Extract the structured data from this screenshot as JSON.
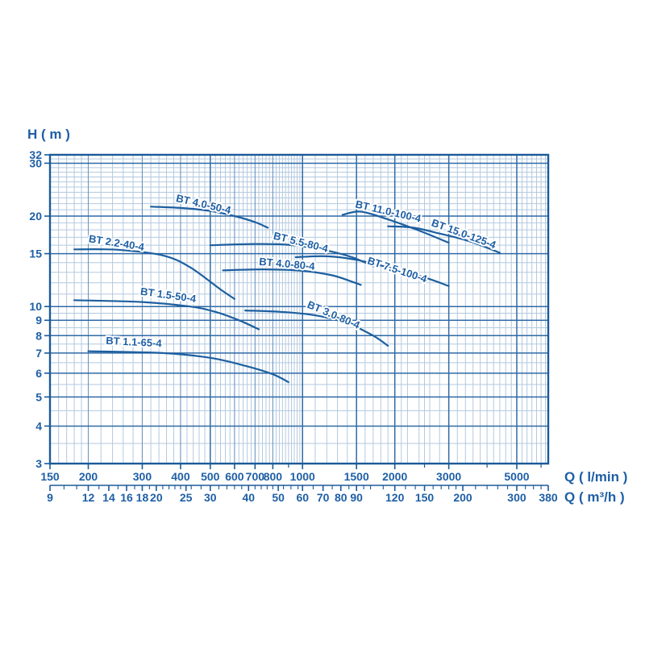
{
  "page": {
    "background": "#ffffff"
  },
  "colors": {
    "text": "#1e5fa5",
    "curve": "#1d5f9f",
    "border": "#1b5a99",
    "grid_major": "#2f6aa6",
    "grid_mid": "#6d94bf",
    "grid_minor": "#b3c9df"
  },
  "chart_data": {
    "type": "line",
    "title": "",
    "x_axis": {
      "label_lmin": "Q ( l/min )",
      "label_m3h": "Q ( m³/h )",
      "scale": "log",
      "q_min_lmin": 150,
      "q_max_lmin": 6333,
      "lmin_ticks_labeled": [
        150,
        200,
        300,
        400,
        500,
        600,
        700,
        800,
        1000,
        1500,
        2000,
        3000,
        5000
      ],
      "lmin_ticks_minor_stub": [
        900,
        2500,
        4000,
        6000
      ],
      "m3h_ticks_labeled": [
        9,
        12,
        14,
        16,
        18,
        20,
        25,
        30,
        40,
        50,
        60,
        70,
        80,
        90,
        120,
        150,
        200,
        300,
        380
      ],
      "m3h_ticks_minor": [
        10,
        11,
        13,
        15,
        17,
        19,
        21,
        22,
        23,
        24,
        26,
        28,
        32,
        34,
        36,
        38,
        42,
        44,
        46,
        48,
        52,
        55,
        58,
        65,
        75,
        85,
        95,
        100,
        110,
        130,
        140,
        160,
        170,
        180,
        190,
        220,
        240,
        260,
        280,
        320,
        340,
        360
      ],
      "grid_major_lmin": [
        500,
        1000,
        1500,
        2000,
        3000,
        5000
      ],
      "grid_mid_lmin": [
        200,
        300,
        400,
        600,
        700,
        800
      ],
      "grid_minor_lmin": [
        160,
        170,
        180,
        190,
        220,
        240,
        260,
        280,
        320,
        340,
        360,
        380,
        420,
        440,
        460,
        480,
        520,
        540,
        560,
        580,
        620,
        640,
        660,
        680,
        720,
        740,
        760,
        780,
        820,
        840,
        860,
        880,
        900,
        920,
        940,
        960,
        980,
        1100,
        1200,
        1300,
        1400,
        1600,
        1700,
        1800,
        1900,
        2100,
        2200,
        2400,
        2500,
        2600,
        2800,
        3200,
        3400,
        3600,
        3800,
        4000,
        4200,
        4400,
        4600,
        4800,
        5200,
        5400,
        5600,
        5800,
        6000,
        6200
      ]
    },
    "y_axis": {
      "label": "H ( m )",
      "scale": "log",
      "h_min": 3,
      "h_max": 32,
      "ticks_labeled": [
        32,
        30,
        20,
        15,
        10,
        9,
        8,
        7,
        6,
        5,
        4,
        3
      ],
      "grid_major": [
        3,
        4,
        5,
        6,
        7,
        8,
        9,
        10,
        15,
        20,
        30
      ],
      "grid_minor": [
        3.5,
        4.5,
        5.5,
        6.5,
        7.5,
        8.5,
        9.5,
        11,
        12,
        13,
        14,
        16,
        17,
        18,
        19,
        21,
        22,
        23,
        24,
        25,
        26,
        27,
        28,
        29,
        31
      ]
    },
    "series": [
      {
        "name": "BT 4.0-50-4",
        "label": {
          "q": 385,
          "h": 22.4,
          "rot": 13
        },
        "points": [
          [
            320,
            21.5
          ],
          [
            400,
            21.3
          ],
          [
            500,
            20.8
          ],
          [
            600,
            20.0
          ],
          [
            700,
            19.1
          ],
          [
            770,
            18.3
          ]
        ]
      },
      {
        "name": "BT 2.2-40-4",
        "label": {
          "q": 200,
          "h": 16.4,
          "rot": 9
        },
        "points": [
          [
            180,
            15.5
          ],
          [
            250,
            15.45
          ],
          [
            350,
            14.8
          ],
          [
            430,
            13.5
          ],
          [
            540,
            11.4
          ],
          [
            600,
            10.6
          ]
        ]
      },
      {
        "name": "BT 1.5-50-4",
        "label": {
          "q": 295,
          "h": 10.95,
          "rot": 8
        },
        "points": [
          [
            180,
            10.5
          ],
          [
            300,
            10.35
          ],
          [
            430,
            10.0
          ],
          [
            520,
            9.6
          ],
          [
            620,
            9.0
          ],
          [
            720,
            8.4
          ]
        ]
      },
      {
        "name": "BT 1.1-65-4",
        "label": {
          "q": 228,
          "h": 7.5,
          "rot": 3
        },
        "points": [
          [
            200,
            7.1
          ],
          [
            350,
            7.0
          ],
          [
            500,
            6.75
          ],
          [
            650,
            6.35
          ],
          [
            800,
            5.95
          ],
          [
            900,
            5.6
          ]
        ]
      },
      {
        "name": "BT 3.0-80-4",
        "label": {
          "q": 1030,
          "h": 9.95,
          "rot": 23
        },
        "points": [
          [
            650,
            9.7
          ],
          [
            850,
            9.6
          ],
          [
            1100,
            9.35
          ],
          [
            1400,
            8.8
          ],
          [
            1700,
            8.0
          ],
          [
            1900,
            7.4
          ]
        ]
      },
      {
        "name": "BT 4.0-80-4",
        "label": {
          "q": 720,
          "h": 13.75,
          "rot": 5
        },
        "points": [
          [
            550,
            13.2
          ],
          [
            750,
            13.3
          ],
          [
            1000,
            13.15
          ],
          [
            1250,
            12.7
          ],
          [
            1450,
            12.1
          ],
          [
            1550,
            11.8
          ]
        ]
      },
      {
        "name": "BT 5.5-80-4",
        "label": {
          "q": 800,
          "h": 16.8,
          "rot": 14
        },
        "points": [
          [
            500,
            16.0
          ],
          [
            700,
            16.15
          ],
          [
            900,
            16.05
          ],
          [
            1150,
            15.5
          ],
          [
            1450,
            14.6
          ],
          [
            1700,
            13.6
          ]
        ]
      },
      {
        "name": "BT 7.5-100-4",
        "label": {
          "q": 1620,
          "h": 13.9,
          "rot": 18
        },
        "points": [
          [
            950,
            14.6
          ],
          [
            1200,
            14.7
          ],
          [
            1500,
            14.3
          ],
          [
            1900,
            13.5
          ],
          [
            2500,
            12.5
          ],
          [
            3000,
            11.7
          ]
        ]
      },
      {
        "name": "BT 11.0-100-4",
        "label": {
          "q": 1480,
          "h": 21.4,
          "rot": 13
        },
        "points": [
          [
            1350,
            20.2
          ],
          [
            1550,
            20.7
          ],
          [
            1900,
            19.5
          ],
          [
            2400,
            17.9
          ],
          [
            3000,
            16.3
          ]
        ]
      },
      {
        "name": "BT 15.0-125-4",
        "label": {
          "q": 2620,
          "h": 18.6,
          "rot": 20
        },
        "points": [
          [
            1900,
            18.5
          ],
          [
            2300,
            18.3
          ],
          [
            2800,
            17.5
          ],
          [
            3500,
            16.5
          ],
          [
            4400,
            15.1
          ]
        ]
      }
    ]
  }
}
